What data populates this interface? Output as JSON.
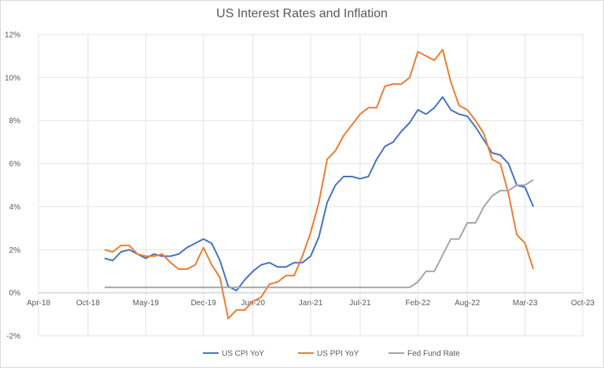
{
  "chart_data": {
    "type": "line",
    "title": "US Interest Rates and Inflation",
    "xlabel": "",
    "ylabel": "",
    "ylim": [
      -2,
      12
    ],
    "y_ticks": [
      "-2%",
      "0%",
      "2%",
      "4%",
      "6%",
      "8%",
      "10%",
      "12%"
    ],
    "x_ticks": [
      "Apr-18",
      "Oct-18",
      "May-19",
      "Dec-19",
      "Jun-20",
      "Jan-21",
      "Jul-21",
      "Feb-22",
      "Aug-22",
      "Mar-23",
      "Oct-23"
    ],
    "grid": true,
    "legend": "bottom",
    "x_start": "Dec-18",
    "x_end": "Apr-23",
    "series": [
      {
        "name": "US CPI YoY",
        "color": "#4472c4",
        "values": [
          1.6,
          1.5,
          1.9,
          2.0,
          1.8,
          1.6,
          1.8,
          1.7,
          1.7,
          1.8,
          2.1,
          2.3,
          2.5,
          2.3,
          1.5,
          0.3,
          0.1,
          0.6,
          1.0,
          1.3,
          1.4,
          1.2,
          1.2,
          1.4,
          1.4,
          1.7,
          2.6,
          4.2,
          5.0,
          5.4,
          5.4,
          5.3,
          5.4,
          6.2,
          6.8,
          7.0,
          7.5,
          7.9,
          8.5,
          8.3,
          8.6,
          9.1,
          8.5,
          8.3,
          8.2,
          7.7,
          7.1,
          6.5,
          6.4,
          6.0,
          5.0,
          4.9,
          4.0
        ]
      },
      {
        "name": "US PPI YoY",
        "color": "#ed7d31",
        "values": [
          2.0,
          1.9,
          2.2,
          2.2,
          1.8,
          1.7,
          1.7,
          1.8,
          1.4,
          1.1,
          1.1,
          1.3,
          2.1,
          1.3,
          0.7,
          -1.2,
          -0.8,
          -0.8,
          -0.4,
          -0.2,
          0.4,
          0.5,
          0.8,
          0.8,
          1.7,
          2.8,
          4.2,
          6.2,
          6.6,
          7.3,
          7.8,
          8.3,
          8.6,
          8.6,
          9.6,
          9.7,
          9.7,
          10.0,
          11.2,
          11.0,
          10.8,
          11.3,
          9.8,
          8.7,
          8.5,
          8.0,
          7.4,
          6.2,
          6.0,
          4.6,
          2.7,
          2.3,
          1.1
        ]
      },
      {
        "name": "Fed Fund Rate",
        "color": "#a5a5a5",
        "values": [
          0.25,
          0.25,
          0.25,
          0.25,
          0.25,
          0.25,
          0.25,
          0.25,
          0.25,
          0.25,
          0.25,
          0.25,
          0.25,
          0.25,
          0.25,
          0.25,
          0.25,
          0.25,
          0.25,
          0.25,
          0.25,
          0.25,
          0.25,
          0.25,
          0.25,
          0.25,
          0.25,
          0.25,
          0.25,
          0.25,
          0.25,
          0.25,
          0.25,
          0.25,
          0.25,
          0.25,
          0.25,
          0.25,
          0.5,
          1.0,
          1.0,
          1.75,
          2.5,
          2.5,
          3.25,
          3.25,
          4.0,
          4.5,
          4.75,
          4.75,
          5.0,
          5.0,
          5.25
        ]
      }
    ]
  }
}
